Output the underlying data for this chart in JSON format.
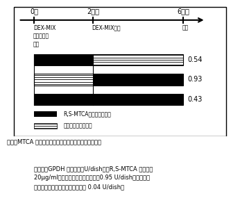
{
  "time_labels": [
    "0日",
    "2日後",
    "6日後"
  ],
  "label_left": "DEX-MIX\nインスリン\n添加",
  "label_mid": "DEX-MIX除去",
  "label_right": "回収",
  "values": [
    "0.54",
    "0.93",
    "0.43"
  ],
  "legend_black": "R,S-MTCAを添加した期間",
  "legend_gray": "添加しなかった期間",
  "caption": "围４　MTCA の添加時期と脂肪細脹分化抑制効果の関係\n数字は、GPDH の活性　（U/dish）。R,S-MTCA の濃度は\n20μg/ml。無添加区（対照）では、0.95 U/dish，バックグ\nラウンド（分化させない場合）は 0.04 U/dish。"
}
